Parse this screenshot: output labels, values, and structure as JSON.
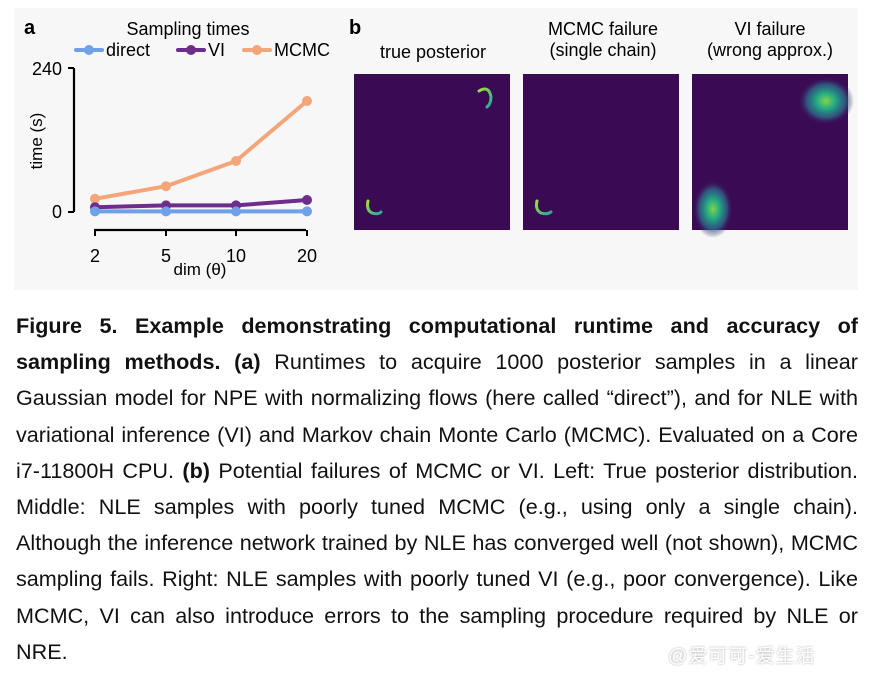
{
  "panel_a": {
    "label": "a",
    "legend_title": "Sampling times",
    "legend": [
      {
        "name": "direct",
        "color": "#6fa0e8"
      },
      {
        "name": "VI",
        "color": "#6e2c8c"
      },
      {
        "name": "MCMC",
        "color": "#f4a57a"
      }
    ]
  },
  "panel_b": {
    "label": "b",
    "titles": [
      {
        "line1": "true posterior",
        "line2": ""
      },
      {
        "line1": "MCMC failure",
        "line2": "(single chain)"
      },
      {
        "line1": "VI failure",
        "line2": "(wrong approx.)"
      }
    ],
    "background_color": "#3b0a55"
  },
  "chart_data": [
    {
      "type": "line",
      "x": [
        2,
        5,
        10,
        20
      ],
      "x_tick_labels": [
        "2",
        "5",
        "10",
        "20"
      ],
      "xlabel": "dim (θ)",
      "ylabel": "time (s)",
      "y_tick_labels": [
        "0",
        "240"
      ],
      "ylim": [
        0,
        240
      ],
      "series": [
        {
          "name": "direct",
          "values": [
            1,
            1,
            1,
            1
          ]
        },
        {
          "name": "VI",
          "values": [
            8,
            11,
            11,
            20
          ]
        },
        {
          "name": "MCMC",
          "values": [
            22,
            43,
            85,
            185
          ]
        }
      ]
    }
  ],
  "caption": {
    "fig_label": "Figure 5. Example demonstrating computational runtime and accuracy of sampling methods.",
    "a_label": "(a)",
    "a_text": "Runtimes to acquire 1000 posterior samples in a linear Gaussian model for NPE with normalizing flows (here called “direct”), and for NLE with variational inference (VI) and Markov chain Monte Carlo (MCMC). Evaluated on a Core i7-11800H CPU.",
    "b_label": "(b)",
    "b_text": "Potential failures of MCMC or VI. Left: True posterior distribution. Middle: NLE samples with poorly tuned MCMC (e.g., using only a single chain). Although the inference network trained by NLE has converged well (not shown), MCMC sampling fails. Right: NLE samples with poorly tuned VI (e.g., poor convergence). Like MCMC, VI can also introduce errors to the sampling procedure required by NLE or NRE."
  },
  "watermark": "@爱可可-爱生活"
}
